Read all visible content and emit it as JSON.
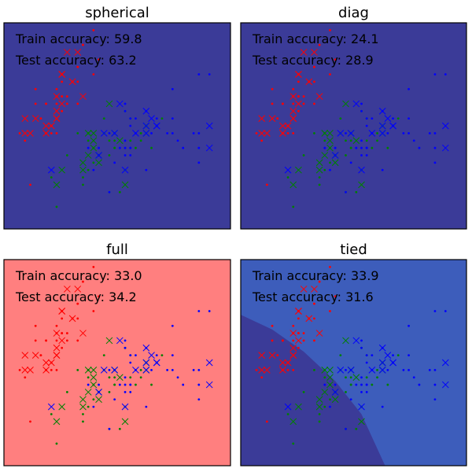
{
  "chart_data": [
    {
      "type": "scatter",
      "title": "spherical",
      "background": "#3b3b98",
      "region": null,
      "annotations": [
        "Train accuracy: 59.8",
        "Test accuracy: 63.2"
      ],
      "xlim": [
        4.0,
        8.3
      ],
      "ylim": [
        1.7,
        4.5
      ],
      "axes_ticks": "none"
    },
    {
      "type": "scatter",
      "title": "diag",
      "background": "#3b3b98",
      "region": null,
      "annotations": [
        "Train accuracy: 24.1",
        "Test accuracy: 28.9"
      ],
      "xlim": [
        4.0,
        8.3
      ],
      "ylim": [
        1.7,
        4.5
      ],
      "axes_ticks": "none"
    },
    {
      "type": "scatter",
      "title": "full",
      "background": "#ff7f7f",
      "region": null,
      "annotations": [
        "Train accuracy: 33.0",
        "Test accuracy: 34.2"
      ],
      "xlim": [
        4.0,
        8.3
      ],
      "ylim": [
        1.7,
        4.5
      ],
      "axes_ticks": "none"
    },
    {
      "type": "scatter",
      "title": "tied",
      "background": "#3d5dbb",
      "region": {
        "color": "#3b3b98",
        "boundary": [
          [
            4.0,
            3.75
          ],
          [
            4.6,
            3.55
          ],
          [
            5.2,
            3.25
          ],
          [
            5.8,
            2.85
          ],
          [
            6.3,
            2.4
          ],
          [
            6.75,
            1.7
          ]
        ]
      },
      "annotations": [
        "Train accuracy: 33.9",
        "Test accuracy: 31.6"
      ],
      "xlim": [
        4.0,
        8.3
      ],
      "ylim": [
        1.7,
        4.5
      ],
      "axes_ticks": "none"
    }
  ],
  "series": {
    "colors": {
      "setosa": "#ff0000",
      "versicolor": "#008000",
      "virginica": "#0000ff"
    },
    "train_points": [
      [
        5.1,
        3.5,
        0
      ],
      [
        4.9,
        3.0,
        0
      ],
      [
        4.7,
        3.2,
        0
      ],
      [
        5.0,
        3.6,
        0
      ],
      [
        5.4,
        3.9,
        0
      ],
      [
        4.6,
        3.4,
        0
      ],
      [
        5.0,
        3.4,
        0
      ],
      [
        4.4,
        2.9,
        0
      ],
      [
        4.9,
        3.1,
        0
      ],
      [
        5.4,
        3.7,
        0
      ],
      [
        4.8,
        3.4,
        0
      ],
      [
        4.8,
        3.0,
        0
      ],
      [
        4.3,
        3.0,
        0
      ],
      [
        5.8,
        4.0,
        0
      ],
      [
        5.7,
        4.4,
        0
      ],
      [
        5.4,
        3.9,
        0
      ],
      [
        5.1,
        3.5,
        0
      ],
      [
        5.7,
        3.8,
        0
      ],
      [
        5.1,
        3.8,
        0
      ],
      [
        5.4,
        3.4,
        0
      ],
      [
        5.1,
        3.7,
        0
      ],
      [
        4.6,
        3.6,
        0
      ],
      [
        5.1,
        3.3,
        0
      ],
      [
        4.8,
        3.4,
        0
      ],
      [
        5.0,
        3.0,
        0
      ],
      [
        5.2,
        3.5,
        0
      ],
      [
        5.2,
        3.4,
        0
      ],
      [
        4.7,
        3.2,
        0
      ],
      [
        5.5,
        4.2,
        0
      ],
      [
        4.5,
        2.3,
        0
      ],
      [
        5.0,
        3.5,
        0
      ],
      [
        5.3,
        3.7,
        0
      ],
      [
        7.0,
        3.2,
        1
      ],
      [
        6.4,
        3.2,
        1
      ],
      [
        6.9,
        3.1,
        1
      ],
      [
        5.5,
        2.3,
        1
      ],
      [
        6.5,
        2.8,
        1
      ],
      [
        5.7,
        2.8,
        1
      ],
      [
        6.3,
        3.3,
        1
      ],
      [
        4.9,
        2.4,
        1
      ],
      [
        6.6,
        2.9,
        1
      ],
      [
        5.2,
        2.7,
        1
      ],
      [
        5.0,
        2.0,
        1
      ],
      [
        5.9,
        3.0,
        1
      ],
      [
        6.0,
        2.2,
        1
      ],
      [
        6.1,
        2.9,
        1
      ],
      [
        5.6,
        2.9,
        1
      ],
      [
        6.7,
        3.1,
        1
      ],
      [
        5.6,
        3.0,
        1
      ],
      [
        5.8,
        2.7,
        1
      ],
      [
        6.2,
        2.2,
        1
      ],
      [
        5.6,
        2.5,
        1
      ],
      [
        5.9,
        3.2,
        1
      ],
      [
        6.1,
        2.8,
        1
      ],
      [
        6.3,
        2.5,
        1
      ],
      [
        6.1,
        2.8,
        1
      ],
      [
        6.4,
        2.9,
        1
      ],
      [
        6.6,
        3.0,
        1
      ],
      [
        6.8,
        2.8,
        1
      ],
      [
        6.0,
        2.9,
        1
      ],
      [
        5.7,
        2.6,
        1
      ],
      [
        5.5,
        2.4,
        1
      ],
      [
        5.8,
        2.7,
        1
      ],
      [
        6.0,
        2.7,
        1
      ],
      [
        5.4,
        3.0,
        1
      ],
      [
        6.3,
        3.3,
        2
      ],
      [
        5.8,
        2.7,
        2
      ],
      [
        7.1,
        3.0,
        2
      ],
      [
        6.3,
        2.9,
        2
      ],
      [
        6.5,
        3.0,
        2
      ],
      [
        7.6,
        3.0,
        2
      ],
      [
        7.3,
        2.9,
        2
      ],
      [
        6.7,
        2.5,
        2
      ],
      [
        7.2,
        3.6,
        2
      ],
      [
        6.5,
        3.2,
        2
      ],
      [
        6.4,
        2.7,
        2
      ],
      [
        6.8,
        3.0,
        2
      ],
      [
        5.7,
        2.5,
        2
      ],
      [
        5.8,
        2.8,
        2
      ],
      [
        6.4,
        3.2,
        2
      ],
      [
        7.7,
        3.8,
        2
      ],
      [
        7.7,
        2.6,
        2
      ],
      [
        6.0,
        2.2,
        2
      ],
      [
        6.9,
        3.2,
        2
      ],
      [
        5.6,
        2.8,
        2
      ],
      [
        7.7,
        2.8,
        2
      ],
      [
        6.3,
        2.7,
        2
      ],
      [
        6.7,
        3.3,
        2
      ],
      [
        7.2,
        3.2,
        2
      ],
      [
        6.2,
        2.8,
        2
      ],
      [
        6.1,
        3.0,
        2
      ],
      [
        6.4,
        2.8,
        2
      ],
      [
        7.2,
        3.0,
        2
      ],
      [
        7.4,
        2.8,
        2
      ],
      [
        7.9,
        3.8,
        2
      ],
      [
        6.4,
        2.8,
        2
      ],
      [
        6.3,
        2.8,
        2
      ],
      [
        6.1,
        2.6,
        2
      ],
      [
        7.7,
        3.0,
        2
      ],
      [
        6.3,
        3.4,
        2
      ],
      [
        6.4,
        3.1,
        2
      ],
      [
        6.0,
        3.0,
        2
      ],
      [
        6.9,
        3.1,
        2
      ]
    ],
    "test_points": [
      [
        4.4,
        3.0,
        0
      ],
      [
        5.1,
        3.4,
        0
      ],
      [
        5.0,
        3.5,
        0
      ],
      [
        4.5,
        3.0,
        0
      ],
      [
        4.4,
        3.2,
        0
      ],
      [
        5.0,
        3.2,
        0
      ],
      [
        5.1,
        3.8,
        0
      ],
      [
        4.8,
        3.0,
        0
      ],
      [
        5.1,
        3.8,
        0
      ],
      [
        4.6,
        3.2,
        0
      ],
      [
        5.3,
        3.7,
        0
      ],
      [
        5.0,
        3.3,
        0
      ],
      [
        5.4,
        4.1,
        0
      ],
      [
        5.2,
        4.1,
        0
      ],
      [
        5.5,
        3.5,
        0
      ],
      [
        4.9,
        3.1,
        0
      ],
      [
        4.8,
        3.1,
        0
      ],
      [
        5.0,
        3.2,
        0
      ],
      [
        6.7,
        3.1,
        1
      ],
      [
        6.3,
        2.3,
        1
      ],
      [
        5.6,
        3.0,
        1
      ],
      [
        5.5,
        2.5,
        1
      ],
      [
        5.5,
        2.6,
        1
      ],
      [
        6.1,
        3.0,
        1
      ],
      [
        5.8,
        2.6,
        1
      ],
      [
        5.0,
        2.3,
        1
      ],
      [
        5.6,
        2.7,
        1
      ],
      [
        5.7,
        3.0,
        1
      ],
      [
        5.7,
        2.9,
        1
      ],
      [
        6.2,
        2.9,
        1
      ],
      [
        5.1,
        2.5,
        1
      ],
      [
        5.7,
        2.8,
        1
      ],
      [
        6.0,
        3.4,
        1
      ],
      [
        6.7,
        3.0,
        1
      ],
      [
        5.8,
        2.7,
        1
      ],
      [
        6.9,
        3.1,
        2
      ],
      [
        6.7,
        3.1,
        2
      ],
      [
        6.9,
        3.1,
        2
      ],
      [
        5.8,
        2.7,
        2
      ],
      [
        6.8,
        3.2,
        2
      ],
      [
        6.7,
        3.3,
        2
      ],
      [
        6.7,
        3.0,
        2
      ],
      [
        6.3,
        2.5,
        2
      ],
      [
        6.5,
        3.0,
        2
      ],
      [
        6.2,
        3.4,
        2
      ],
      [
        5.9,
        3.0,
        2
      ],
      [
        7.9,
        3.1,
        2
      ],
      [
        4.9,
        2.5,
        2
      ],
      [
        7.9,
        2.8,
        2
      ],
      [
        6.1,
        3.0,
        2
      ]
    ]
  }
}
